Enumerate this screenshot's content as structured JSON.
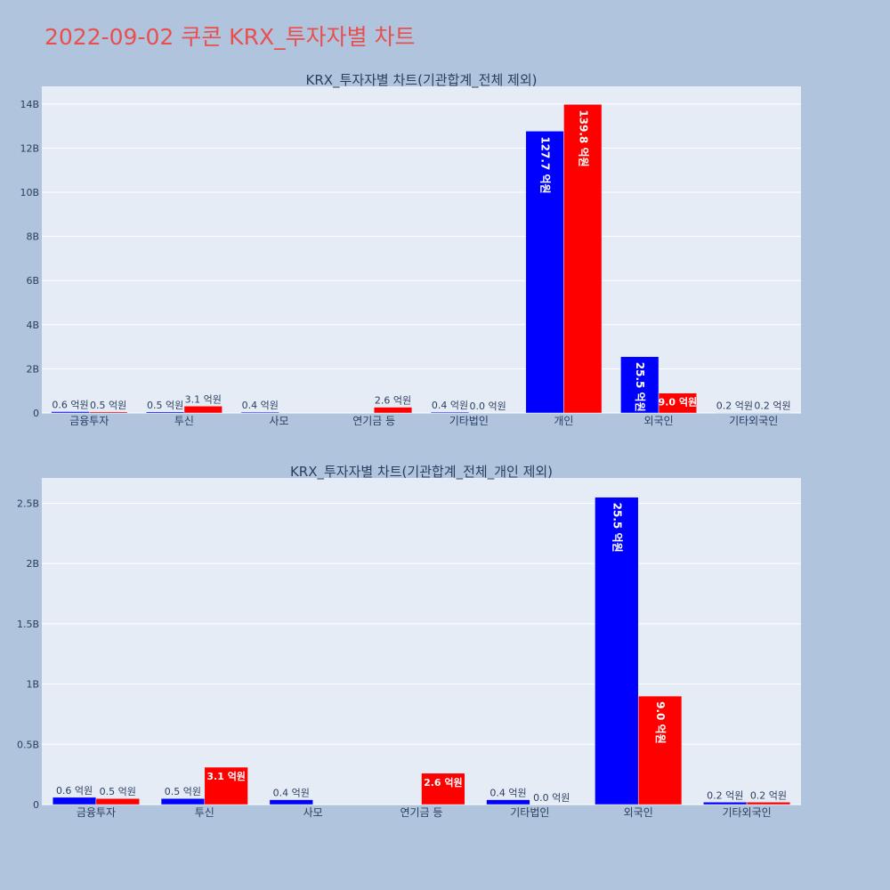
{
  "page": {
    "title": "2022-09-02 쿠콘 KRX_투자자별 차트"
  },
  "colors": {
    "background": "#b0c4de",
    "plot_bg": "#e5ecf6",
    "series_blue": "#0000ff",
    "series_red": "#ff0000",
    "title_color": "#e8504f",
    "text_color": "#2a3f5f"
  },
  "chart_data": [
    {
      "type": "bar",
      "title": "KRX_투자자별 차트(기관합계_전체 제외)",
      "categories": [
        "금융투자",
        "투신",
        "사모",
        "연기금 등",
        "기타법인",
        "개인",
        "외국인",
        "기타외국인"
      ],
      "series": [
        {
          "color": "#0000ff",
          "values": [
            0.06,
            0.05,
            0.04,
            null,
            0.04,
            12.77,
            2.55,
            0.02
          ],
          "labels": [
            "0.6 억원",
            "0.5 억원",
            "0.4 억원",
            "",
            "0.4 억원",
            "127.7 억원",
            "25.5 억원",
            "0.2 억원"
          ]
        },
        {
          "color": "#ff0000",
          "values": [
            0.05,
            0.31,
            null,
            0.26,
            0.0,
            13.98,
            0.9,
            0.02
          ],
          "labels": [
            "0.5 억원",
            "3.1 억원",
            "",
            "2.6 억원",
            "0.0 억원",
            "139.8 억원",
            "9.0 억원",
            "0.2 억원"
          ]
        }
      ],
      "yaxis": {
        "range": [
          0,
          14.8
        ],
        "ticks": [
          0,
          2,
          4,
          6,
          8,
          10,
          12,
          14
        ],
        "tick_labels": [
          "0",
          "2B",
          "4B",
          "6B",
          "8B",
          "10B",
          "12B",
          "14B"
        ]
      },
      "grid": true
    },
    {
      "type": "bar",
      "title": "KRX_투자자별 차트(기관합계_전체_개인 제외)",
      "categories": [
        "금융투자",
        "투신",
        "사모",
        "연기금 등",
        "기타법인",
        "외국인",
        "기타외국인"
      ],
      "series": [
        {
          "color": "#0000ff",
          "values": [
            0.06,
            0.05,
            0.04,
            null,
            0.04,
            2.55,
            0.02
          ],
          "labels": [
            "0.6 억원",
            "0.5 억원",
            "0.4 억원",
            "",
            "0.4 억원",
            "25.5 억원",
            "0.2 억원"
          ]
        },
        {
          "color": "#ff0000",
          "values": [
            0.05,
            0.31,
            null,
            0.26,
            0.0,
            0.9,
            0.02
          ],
          "labels": [
            "0.5 억원",
            "3.1 억원",
            "",
            "2.6 억원",
            "0.0 억원",
            "9.0 억원",
            "0.2 억원"
          ]
        }
      ],
      "yaxis": {
        "range": [
          0,
          2.71
        ],
        "ticks": [
          0,
          0.5,
          1,
          1.5,
          2,
          2.5
        ],
        "tick_labels": [
          "0",
          "0.5B",
          "1B",
          "1.5B",
          "2B",
          "2.5B"
        ]
      },
      "grid": true
    }
  ]
}
